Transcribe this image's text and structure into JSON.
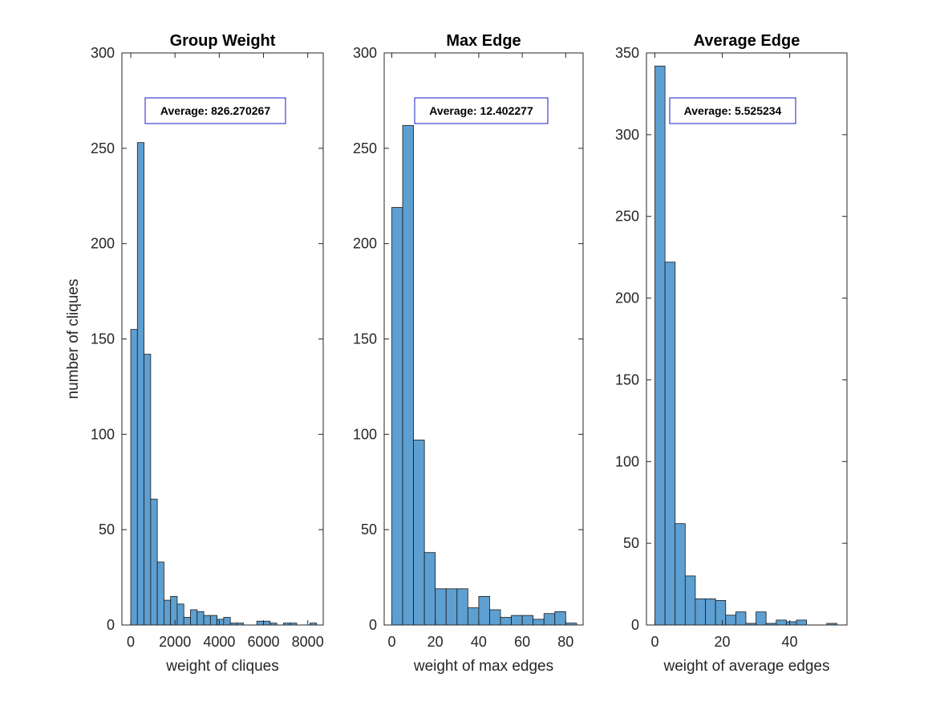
{
  "figure": {
    "background": "#ffffff",
    "bar_color": "#5d9fd1",
    "bar_edge_color": "#1a1a1a",
    "annotation_border_color": "#1a1acc"
  },
  "chart_data": [
    {
      "type": "bar",
      "title": "Group Weight",
      "xlabel": "weight of cliques",
      "ylabel": "number of cliques",
      "xlim": [
        -400,
        8700
      ],
      "ylim": [
        0,
        300
      ],
      "xticks": [
        0,
        2000,
        4000,
        6000,
        8000
      ],
      "xtick_labels": [
        "0",
        "2000",
        "4000",
        "6000",
        "8000"
      ],
      "yticks": [
        0,
        50,
        100,
        150,
        200,
        250,
        300
      ],
      "ytick_labels": [
        "0",
        "50",
        "100",
        "150",
        "200",
        "250",
        "300"
      ],
      "bin_edges": [
        0,
        300,
        600,
        900,
        1200,
        1500,
        1800,
        2100,
        2400,
        2700,
        3000,
        3300,
        3600,
        3900,
        4200,
        4500,
        4800,
        5100,
        5400,
        5700,
        6000,
        6300,
        6600,
        6900,
        7200,
        7500,
        7800,
        8100,
        8400
      ],
      "values": [
        155,
        253,
        142,
        66,
        33,
        13,
        15,
        11,
        4,
        8,
        7,
        5,
        5,
        3,
        4,
        1,
        1,
        0,
        0,
        2,
        2,
        1,
        0,
        1,
        1,
        0,
        0,
        1
      ],
      "annotation": "Average: 826.270267",
      "grid": false
    },
    {
      "type": "bar",
      "title": "Max Edge",
      "xlabel": "weight of max edges",
      "ylabel": "",
      "xlim": [
        -3.5,
        88
      ],
      "ylim": [
        0,
        300
      ],
      "xticks": [
        0,
        20,
        40,
        60,
        80
      ],
      "xtick_labels": [
        "0",
        "20",
        "40",
        "60",
        "80"
      ],
      "yticks": [
        0,
        50,
        100,
        150,
        200,
        250,
        300
      ],
      "ytick_labels": [
        "0",
        "50",
        "100",
        "150",
        "200",
        "250",
        "300"
      ],
      "bin_edges": [
        0,
        5,
        10,
        15,
        20,
        25,
        30,
        35,
        40,
        45,
        50,
        55,
        60,
        65,
        70,
        75,
        80,
        85
      ],
      "values": [
        219,
        262,
        97,
        38,
        19,
        19,
        19,
        9,
        15,
        8,
        4,
        5,
        5,
        3,
        6,
        7,
        1
      ],
      "annotation": "Average: 12.402277",
      "grid": false
    },
    {
      "type": "bar",
      "title": "Average Edge",
      "xlabel": "weight of average edges",
      "ylabel": "",
      "xlim": [
        -2.5,
        57
      ],
      "ylim": [
        0,
        350
      ],
      "xticks": [
        0,
        20,
        40
      ],
      "xtick_labels": [
        "0",
        "20",
        "40"
      ],
      "yticks": [
        0,
        50,
        100,
        150,
        200,
        250,
        300,
        350
      ],
      "ytick_labels": [
        "0",
        "50",
        "100",
        "150",
        "200",
        "250",
        "300",
        "350"
      ],
      "bin_edges": [
        0,
        3,
        6,
        9,
        12,
        15,
        18,
        21,
        24,
        27,
        30,
        33,
        36,
        39,
        42,
        45,
        48,
        51,
        54
      ],
      "values": [
        342,
        222,
        62,
        30,
        16,
        16,
        15,
        6,
        8,
        1,
        8,
        1,
        3,
        2,
        3,
        0,
        0,
        1
      ],
      "annotation": "Average: 5.525234",
      "grid": false
    }
  ]
}
